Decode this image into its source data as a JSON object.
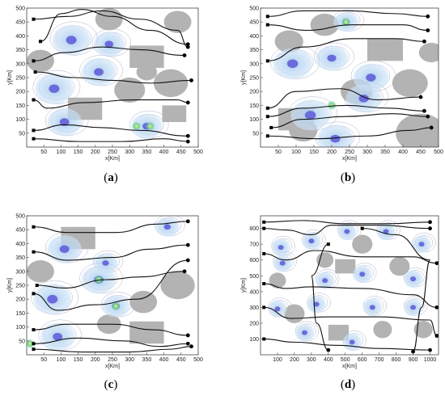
{
  "chart_data": [
    {
      "type": "scatter",
      "caption_open": "(",
      "caption_letter": "a",
      "caption_close": ")",
      "xlabel": "x[Km]",
      "ylabel": "y[Km]",
      "xlim": [
        0,
        500
      ],
      "ylim": [
        0,
        500
      ],
      "xticks": [
        50,
        100,
        150,
        200,
        250,
        300,
        350,
        400,
        450,
        500
      ],
      "yticks": [
        50,
        100,
        150,
        200,
        250,
        300,
        350,
        400,
        450,
        500
      ],
      "obstacles_square": [
        {
          "x": 350,
          "y": 325,
          "w": 100,
          "h": 80
        },
        {
          "x": 170,
          "y": 138,
          "w": 100,
          "h": 80
        },
        {
          "x": 430,
          "y": 120,
          "w": 70,
          "h": 60
        }
      ],
      "obstacles_circle": [
        {
          "x": 40,
          "y": 310,
          "r": 40
        },
        {
          "x": 420,
          "y": 230,
          "r": 50
        },
        {
          "x": 300,
          "y": 205,
          "r": 45
        },
        {
          "x": 240,
          "y": 460,
          "r": 40
        },
        {
          "x": 440,
          "y": 450,
          "r": 40
        },
        {
          "x": 350,
          "y": 270,
          "r": 30
        }
      ],
      "targets": [
        {
          "x": 130,
          "y": 385,
          "r": 55
        },
        {
          "x": 240,
          "y": 370,
          "r": 45
        },
        {
          "x": 210,
          "y": 270,
          "r": 50
        },
        {
          "x": 80,
          "y": 210,
          "r": 55
        },
        {
          "x": 110,
          "y": 90,
          "r": 50
        },
        {
          "x": 350,
          "y": 75,
          "r": 45
        }
      ],
      "hotspots": [
        {
          "x": 360,
          "y": 75
        },
        {
          "x": 320,
          "y": 75
        }
      ],
      "trajectories": [
        [
          [
            20,
            460
          ],
          [
            120,
            470
          ],
          [
            220,
            490
          ],
          [
            330,
            460
          ],
          [
            440,
            420
          ],
          [
            470,
            360
          ]
        ],
        [
          [
            20,
            310
          ],
          [
            110,
            340
          ],
          [
            220,
            360
          ],
          [
            330,
            350
          ],
          [
            460,
            330
          ]
        ],
        [
          [
            25,
            270
          ],
          [
            140,
            250
          ],
          [
            250,
            240
          ],
          [
            360,
            230
          ],
          [
            480,
            240
          ]
        ],
        [
          [
            20,
            170
          ],
          [
            60,
            140
          ],
          [
            170,
            160
          ],
          [
            310,
            170
          ],
          [
            440,
            170
          ],
          [
            470,
            160
          ]
        ],
        [
          [
            20,
            60
          ],
          [
            110,
            80
          ],
          [
            220,
            70
          ],
          [
            330,
            60
          ],
          [
            470,
            40
          ]
        ],
        [
          [
            20,
            30
          ],
          [
            150,
            20
          ],
          [
            280,
            20
          ],
          [
            400,
            30
          ],
          [
            470,
            20
          ]
        ],
        [
          [
            40,
            380
          ],
          [
            100,
            480
          ],
          [
            160,
            495
          ],
          [
            250,
            470
          ],
          [
            360,
            420
          ],
          [
            470,
            370
          ]
        ]
      ]
    },
    {
      "type": "scatter",
      "caption_open": "(",
      "caption_letter": "b",
      "caption_close": ")",
      "xlabel": "x[Km]",
      "ylabel": "y[Km]",
      "xlim": [
        0,
        500
      ],
      "ylim": [
        0,
        500
      ],
      "xticks": [
        50,
        100,
        150,
        200,
        250,
        300,
        350,
        400,
        450,
        500
      ],
      "yticks": [
        50,
        100,
        150,
        200,
        250,
        300,
        350,
        400,
        450,
        500
      ],
      "obstacles_square": [
        {
          "x": 350,
          "y": 350,
          "w": 100,
          "h": 80
        },
        {
          "x": 100,
          "y": 100,
          "w": 100,
          "h": 80
        }
      ],
      "obstacles_circle": [
        {
          "x": 80,
          "y": 380,
          "r": 40
        },
        {
          "x": 180,
          "y": 440,
          "r": 40
        },
        {
          "x": 420,
          "y": 230,
          "r": 50
        },
        {
          "x": 270,
          "y": 200,
          "r": 45
        },
        {
          "x": 120,
          "y": 60,
          "r": 40
        },
        {
          "x": 450,
          "y": 50,
          "r": 70
        },
        {
          "x": 480,
          "y": 340,
          "r": 35
        }
      ],
      "targets": [
        {
          "x": 90,
          "y": 300,
          "r": 55
        },
        {
          "x": 200,
          "y": 320,
          "r": 45
        },
        {
          "x": 310,
          "y": 250,
          "r": 50
        },
        {
          "x": 140,
          "y": 115,
          "r": 55
        },
        {
          "x": 290,
          "y": 175,
          "r": 50
        },
        {
          "x": 210,
          "y": 30,
          "r": 50
        },
        {
          "x": 240,
          "y": 450,
          "r": 35
        }
      ],
      "hotspots": [
        {
          "x": 240,
          "y": 450
        },
        {
          "x": 200,
          "y": 150
        }
      ],
      "trajectories": [
        [
          [
            20,
            470
          ],
          [
            120,
            490
          ],
          [
            250,
            490
          ],
          [
            380,
            480
          ],
          [
            470,
            470
          ]
        ],
        [
          [
            20,
            440
          ],
          [
            130,
            420
          ],
          [
            260,
            440
          ],
          [
            400,
            440
          ],
          [
            470,
            420
          ]
        ],
        [
          [
            20,
            310
          ],
          [
            120,
            360
          ],
          [
            260,
            390
          ],
          [
            380,
            390
          ],
          [
            460,
            380
          ]
        ],
        [
          [
            20,
            140
          ],
          [
            100,
            200
          ],
          [
            220,
            210
          ],
          [
            330,
            170
          ],
          [
            450,
            180
          ]
        ],
        [
          [
            20,
            110
          ],
          [
            120,
            140
          ],
          [
            240,
            150
          ],
          [
            360,
            140
          ],
          [
            460,
            130
          ]
        ],
        [
          [
            30,
            70
          ],
          [
            120,
            100
          ],
          [
            240,
            110
          ],
          [
            370,
            120
          ],
          [
            470,
            110
          ]
        ],
        [
          [
            20,
            40
          ],
          [
            160,
            30
          ],
          [
            300,
            40
          ],
          [
            420,
            60
          ],
          [
            480,
            70
          ]
        ]
      ]
    },
    {
      "type": "scatter",
      "caption_open": "(",
      "caption_letter": "c",
      "caption_close": ")",
      "xlabel": "x[Km]",
      "ylabel": "y[Km]",
      "xlim": [
        0,
        500
      ],
      "ylim": [
        0,
        500
      ],
      "xticks": [
        50,
        100,
        150,
        200,
        250,
        300,
        350,
        400,
        450,
        500
      ],
      "yticks": [
        50,
        100,
        150,
        200,
        250,
        300,
        350,
        400,
        450,
        500
      ],
      "obstacles_square": [
        {
          "x": 150,
          "y": 420,
          "w": 100,
          "h": 80
        },
        {
          "x": 350,
          "y": 80,
          "w": 100,
          "h": 80
        }
      ],
      "obstacles_circle": [
        {
          "x": 40,
          "y": 300,
          "r": 40
        },
        {
          "x": 440,
          "y": 250,
          "r": 50
        },
        {
          "x": 340,
          "y": 190,
          "r": 40
        },
        {
          "x": 240,
          "y": 110,
          "r": 35
        }
      ],
      "targets": [
        {
          "x": 110,
          "y": 380,
          "r": 50
        },
        {
          "x": 210,
          "y": 270,
          "r": 50
        },
        {
          "x": 75,
          "y": 200,
          "r": 55
        },
        {
          "x": 90,
          "y": 65,
          "r": 50
        },
        {
          "x": 260,
          "y": 175,
          "r": 40
        },
        {
          "x": 410,
          "y": 460,
          "r": 35
        },
        {
          "x": 230,
          "y": 330,
          "r": 35
        }
      ],
      "hotspots": [
        {
          "x": 210,
          "y": 270
        },
        {
          "x": 260,
          "y": 175
        },
        {
          "x": 10,
          "y": 40
        }
      ],
      "trajectories": [
        [
          [
            20,
            460
          ],
          [
            120,
            440
          ],
          [
            260,
            440
          ],
          [
            380,
            470
          ],
          [
            470,
            480
          ]
        ],
        [
          [
            20,
            370
          ],
          [
            120,
            340
          ],
          [
            250,
            350
          ],
          [
            360,
            380
          ],
          [
            470,
            395
          ]
        ],
        [
          [
            30,
            250
          ],
          [
            110,
            240
          ],
          [
            230,
            270
          ],
          [
            330,
            280
          ],
          [
            460,
            300
          ]
        ],
        [
          [
            20,
            220
          ],
          [
            90,
            160
          ],
          [
            200,
            180
          ],
          [
            320,
            200
          ],
          [
            470,
            340
          ]
        ],
        [
          [
            20,
            90
          ],
          [
            120,
            110
          ],
          [
            250,
            110
          ],
          [
            370,
            90
          ],
          [
            470,
            70
          ]
        ],
        [
          [
            20,
            40
          ],
          [
            150,
            60
          ],
          [
            280,
            50
          ],
          [
            390,
            30
          ],
          [
            470,
            40
          ]
        ],
        [
          [
            20,
            20
          ],
          [
            160,
            10
          ],
          [
            300,
            10
          ],
          [
            420,
            20
          ],
          [
            480,
            30
          ]
        ]
      ]
    },
    {
      "type": "scatter",
      "caption_open": "(",
      "caption_letter": "d",
      "caption_close": ")",
      "xlabel": "x[Km]",
      "ylabel": "y[Km]",
      "xlim": [
        0,
        1050
      ],
      "ylim": [
        0,
        880
      ],
      "xticks": [
        100,
        200,
        300,
        400,
        500,
        600,
        700,
        800,
        900,
        1000
      ],
      "yticks": [
        100,
        200,
        300,
        400,
        500,
        600,
        700,
        800
      ],
      "obstacles_square": [
        {
          "x": 500,
          "y": 560,
          "w": 120,
          "h": 90
        },
        {
          "x": 460,
          "y": 140,
          "w": 120,
          "h": 100
        }
      ],
      "obstacles_circle": [
        {
          "x": 600,
          "y": 700,
          "r": 60
        },
        {
          "x": 380,
          "y": 600,
          "r": 50
        },
        {
          "x": 100,
          "y": 470,
          "r": 50
        },
        {
          "x": 820,
          "y": 560,
          "r": 60
        },
        {
          "x": 200,
          "y": 260,
          "r": 60
        },
        {
          "x": 720,
          "y": 160,
          "r": 55
        },
        {
          "x": 960,
          "y": 160,
          "r": 55
        }
      ],
      "targets": [
        {
          "x": 120,
          "y": 680,
          "r": 55
        },
        {
          "x": 300,
          "y": 720,
          "r": 55
        },
        {
          "x": 510,
          "y": 780,
          "r": 55
        },
        {
          "x": 740,
          "y": 780,
          "r": 55
        },
        {
          "x": 950,
          "y": 700,
          "r": 55
        },
        {
          "x": 130,
          "y": 580,
          "r": 55
        },
        {
          "x": 380,
          "y": 470,
          "r": 55
        },
        {
          "x": 600,
          "y": 510,
          "r": 55
        },
        {
          "x": 900,
          "y": 480,
          "r": 55
        },
        {
          "x": 100,
          "y": 290,
          "r": 55
        },
        {
          "x": 330,
          "y": 320,
          "r": 55
        },
        {
          "x": 660,
          "y": 300,
          "r": 55
        },
        {
          "x": 900,
          "y": 300,
          "r": 55
        },
        {
          "x": 260,
          "y": 140,
          "r": 55
        },
        {
          "x": 540,
          "y": 80,
          "r": 55
        }
      ],
      "hotspots": [],
      "trajectories": [
        [
          [
            20,
            840
          ],
          [
            250,
            850
          ],
          [
            500,
            830
          ],
          [
            750,
            830
          ],
          [
            1000,
            840
          ]
        ],
        [
          [
            20,
            800
          ],
          [
            150,
            790
          ],
          [
            300,
            760
          ],
          [
            420,
            820
          ],
          [
            700,
            820
          ],
          [
            1000,
            800
          ]
        ],
        [
          [
            20,
            640
          ],
          [
            150,
            600
          ],
          [
            320,
            660
          ],
          [
            600,
            620
          ],
          [
            900,
            620
          ],
          [
            1040,
            580
          ]
        ],
        [
          [
            20,
            450
          ],
          [
            150,
            420
          ],
          [
            300,
            430
          ],
          [
            600,
            420
          ],
          [
            900,
            380
          ],
          [
            1040,
            300
          ]
        ],
        [
          [
            20,
            300
          ],
          [
            180,
            230
          ],
          [
            400,
            240
          ],
          [
            700,
            240
          ],
          [
            1000,
            220
          ],
          [
            1040,
            120
          ]
        ],
        [
          [
            20,
            100
          ],
          [
            200,
            80
          ],
          [
            450,
            60
          ],
          [
            700,
            40
          ],
          [
            1000,
            30
          ]
        ],
        [
          [
            400,
            700
          ],
          [
            300,
            500
          ],
          [
            330,
            200
          ],
          [
            400,
            30
          ]
        ],
        [
          [
            600,
            800
          ],
          [
            800,
            760
          ],
          [
            1000,
            600
          ],
          [
            950,
            300
          ],
          [
            900,
            20
          ]
        ]
      ]
    }
  ]
}
